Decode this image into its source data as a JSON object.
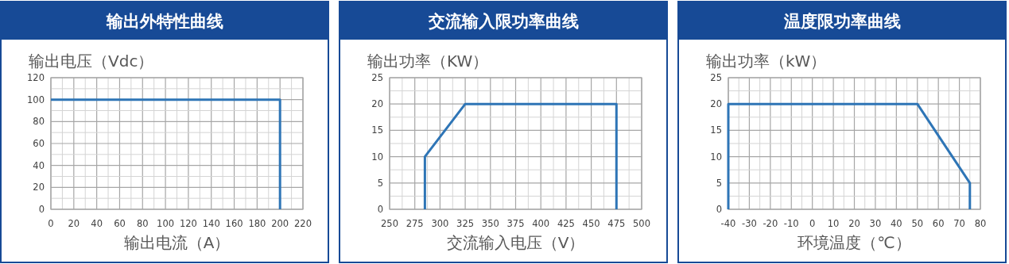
{
  "chart_data": [
    {
      "type": "line",
      "title": "输出外特性曲线",
      "ylabel": "输出电压（Vdc）",
      "xlabel": "输出电流（A）",
      "xlim": [
        0,
        220
      ],
      "xticks": [
        0,
        20,
        40,
        60,
        80,
        100,
        120,
        140,
        160,
        180,
        200,
        220
      ],
      "ylim": [
        0,
        120
      ],
      "yticks": [
        0,
        20,
        40,
        60,
        80,
        100,
        120
      ],
      "grid": true,
      "series": [
        {
          "color": "#2e75b6",
          "x": [
            0,
            200,
            200
          ],
          "values": [
            100,
            100,
            0
          ]
        }
      ]
    },
    {
      "type": "line",
      "title": "交流输入限功率曲线",
      "ylabel": "输出功率（KW）",
      "xlabel": "交流输入电压（V）",
      "xlim": [
        250,
        500
      ],
      "xticks": [
        250,
        275,
        300,
        325,
        350,
        375,
        400,
        425,
        450,
        475,
        500
      ],
      "ylim": [
        0,
        25
      ],
      "yticks": [
        0,
        5,
        10,
        15,
        20,
        25
      ],
      "grid": true,
      "series": [
        {
          "color": "#2e75b6",
          "x": [
            285,
            285,
            325,
            475,
            475
          ],
          "values": [
            0,
            10,
            20,
            20,
            0
          ]
        }
      ]
    },
    {
      "type": "line",
      "title": "温度限功率曲线",
      "ylabel": "输出功率（kW）",
      "xlabel": "环境温度（℃）",
      "xlim": [
        -40,
        80
      ],
      "xticks": [
        -40,
        -30,
        -20,
        -10,
        0,
        10,
        20,
        30,
        40,
        50,
        60,
        70,
        80
      ],
      "ylim": [
        0,
        25
      ],
      "yticks": [
        0,
        5,
        10,
        15,
        20,
        25
      ],
      "grid": true,
      "series": [
        {
          "color": "#2e75b6",
          "x": [
            -40,
            -40,
            50,
            75,
            75
          ],
          "values": [
            0,
            20,
            20,
            5,
            0
          ]
        }
      ]
    }
  ]
}
